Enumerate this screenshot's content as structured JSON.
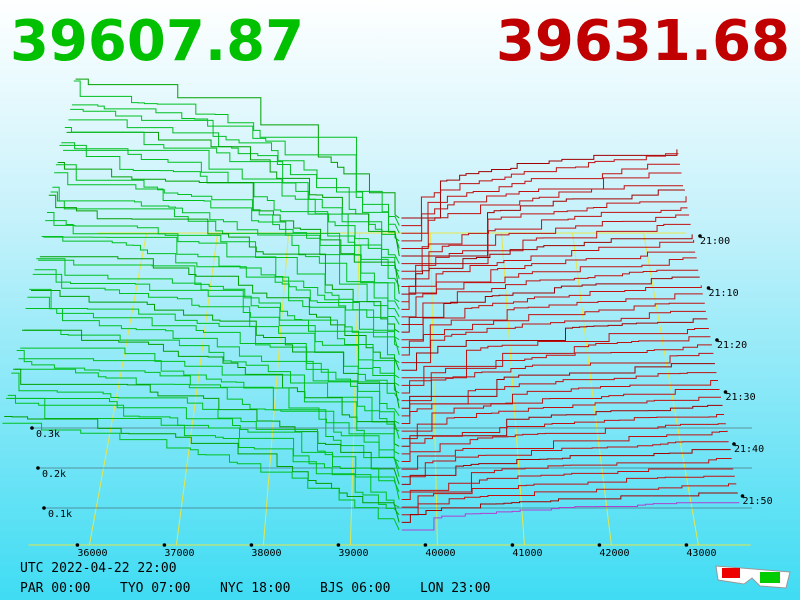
{
  "header": {
    "bid": "39607.87",
    "ask": "39631.68"
  },
  "price_axis": {
    "ticks": [
      36000,
      37000,
      38000,
      39000,
      40000,
      41000,
      42000,
      43000
    ]
  },
  "time_axis": {
    "labels": [
      "21:00",
      "21:10",
      "21:20",
      "21:30",
      "21:40",
      "21:50"
    ]
  },
  "depth_axis": {
    "labels": [
      "0.3k",
      "0.2k",
      "0.1k"
    ]
  },
  "footer": {
    "utc": "UTC 2022-04-22 22:00",
    "zones": [
      "PAR 00:00",
      "TYO 07:00",
      "NYC 18:00",
      "BJS 06:00",
      "LON 23:00"
    ]
  }
}
